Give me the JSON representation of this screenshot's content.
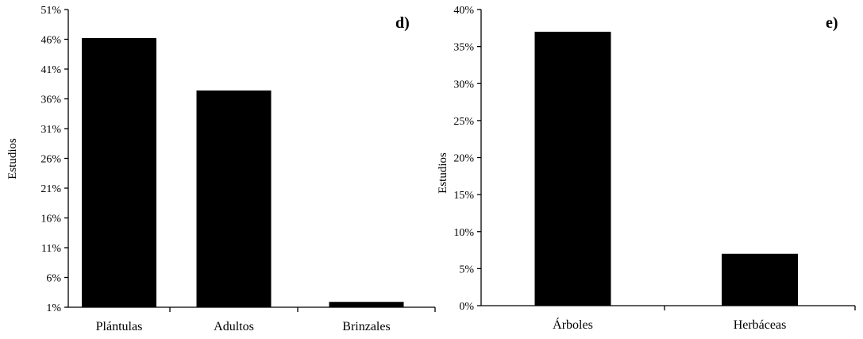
{
  "chart_data": [
    {
      "type": "bar",
      "panel_label": "d)",
      "ylabel": "Estudios",
      "xlabel": "",
      "categories": [
        "Plántulas",
        "Adultos",
        "Brinzales"
      ],
      "values": [
        46.2,
        37.4,
        1.9
      ],
      "ylim": [
        1,
        51
      ],
      "yticks": [
        "1%",
        "6%",
        "11%",
        "16%",
        "21%",
        "26%",
        "31%",
        "36%",
        "41%",
        "46%",
        "51%"
      ],
      "ytick_values": [
        1,
        6,
        11,
        16,
        21,
        26,
        31,
        36,
        41,
        46,
        51
      ],
      "bar_color": "#000000",
      "grid": false
    },
    {
      "type": "bar",
      "panel_label": "e)",
      "ylabel": "Estudios",
      "xlabel": "",
      "categories": [
        "Árboles",
        "Herbáceas"
      ],
      "values": [
        37,
        7
      ],
      "ylim": [
        0,
        40
      ],
      "yticks": [
        "0%",
        "5%",
        "10%",
        "15%",
        "20%",
        "25%",
        "30%",
        "35%",
        "40%"
      ],
      "ytick_values": [
        0,
        5,
        10,
        15,
        20,
        25,
        30,
        35,
        40
      ],
      "bar_color": "#000000",
      "grid": false
    }
  ]
}
